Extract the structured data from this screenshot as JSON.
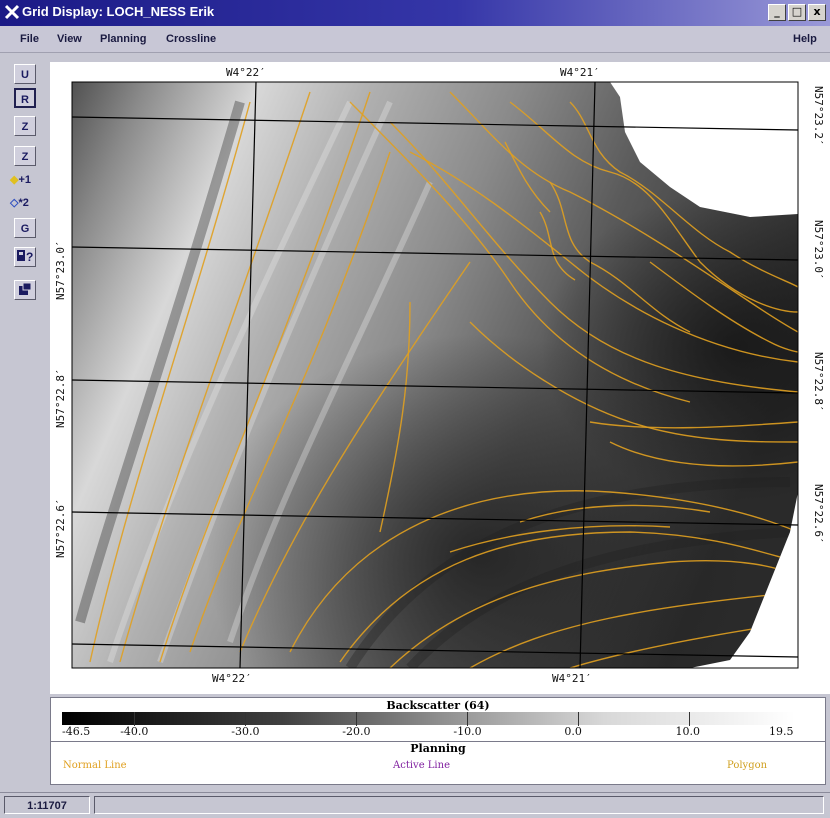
{
  "window": {
    "title": "Grid Display: LOCH_NESS Erik",
    "buttons": [
      "_",
      "□",
      "x"
    ]
  },
  "menu": {
    "file": "File",
    "view": "View",
    "planning": "Planning",
    "crossline": "Crossline",
    "help": "Help"
  },
  "toolbar": {
    "u": "U",
    "r": "R",
    "z1": "Z",
    "z2": "Z",
    "plus1": "+1",
    "star2": "*2",
    "g": "G",
    "query_icon": "query-icon",
    "export_icon": "export-icon"
  },
  "map": {
    "top_left_lon": "W4°22′",
    "top_right_lon": "W4°21′",
    "bottom_left_lon": "W4°22′",
    "bottom_right_lon": "W4°21′",
    "left_lat_1": "N57°23.0′",
    "left_lat_2": "N57°22.8′",
    "left_lat_3": "N57°22.6′",
    "right_lat_1": "N57°23.2′",
    "right_lat_2": "N57°23.0′",
    "right_lat_3": "N57°22.8′",
    "right_lat_4": "N57°22.6′",
    "contour_color": "#e0a020",
    "grid_color": "#000000"
  },
  "legend": {
    "title": "Backscatter (64)",
    "ticks": [
      "-46.5",
      "-40.0",
      "-30.0",
      "-20.0",
      "-10.0",
      "0.0",
      "10.0",
      "19.5"
    ],
    "range": [
      -46.5,
      19.5
    ]
  },
  "planning": {
    "title": "Planning",
    "normal_line": "Normal Line",
    "active_line": "Active Line",
    "polygon": "Polygon",
    "normal_color": "#e0a020",
    "active_color": "#8020a0",
    "polygon_color": "#d0a020"
  },
  "status": {
    "scale": "1:11707",
    "message": ""
  }
}
